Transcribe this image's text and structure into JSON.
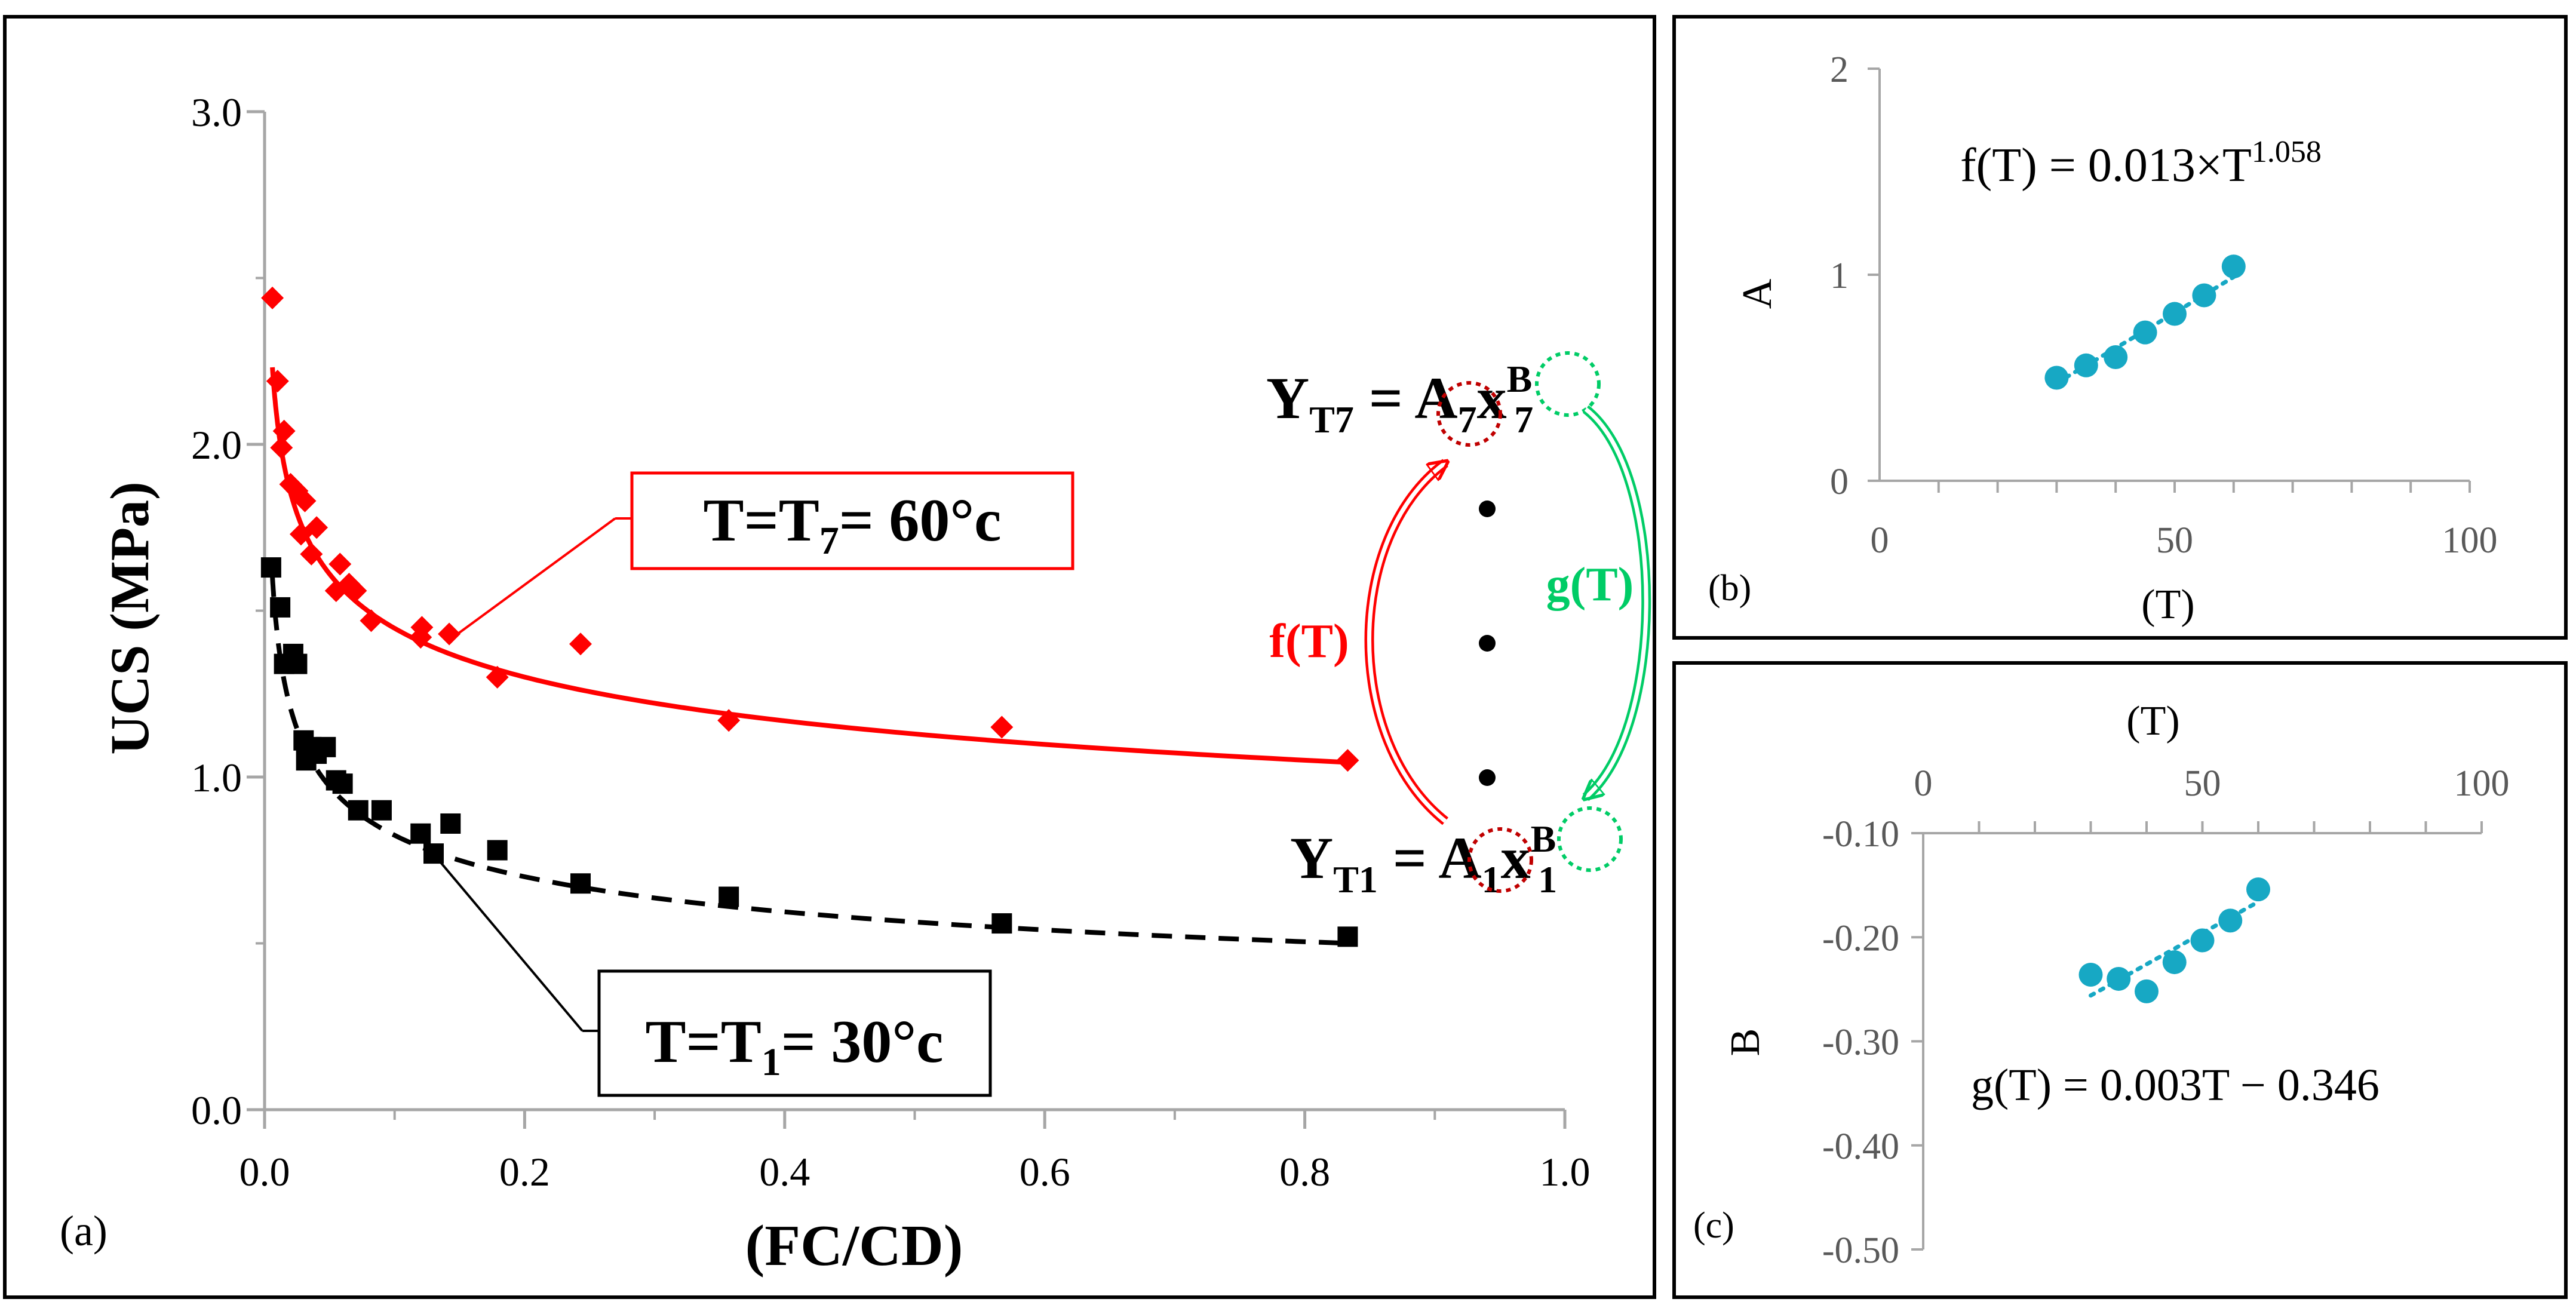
{
  "chart_data": [
    {
      "id": "a",
      "type": "scatter",
      "panel_label": "(a)",
      "xlabel": "(FC/CD)",
      "ylabel": "UCS (MPa)",
      "xlim": [
        0,
        1.0
      ],
      "ylim": [
        0,
        3.0
      ],
      "x_ticks": [
        "0.0",
        "0.2",
        "0.4",
        "0.6",
        "0.8",
        "1.0"
      ],
      "y_ticks": [
        "0.0",
        "1.0",
        "2.0",
        "3.0"
      ],
      "series": [
        {
          "name": "T=T7= 60°c",
          "color": "#ff0000",
          "marker": "diamond",
          "fit_line": "solid",
          "fit_A": 1.015,
          "fit_B": -0.154,
          "points": [
            [
              0.006,
              2.44
            ],
            [
              0.01,
              2.19
            ],
            [
              0.013,
              1.99
            ],
            [
              0.015,
              2.04
            ],
            [
              0.02,
              1.88
            ],
            [
              0.025,
              1.86
            ],
            [
              0.028,
              1.73
            ],
            [
              0.031,
              1.83
            ],
            [
              0.036,
              1.67
            ],
            [
              0.04,
              1.75
            ],
            [
              0.055,
              1.56
            ],
            [
              0.058,
              1.64
            ],
            [
              0.065,
              1.58
            ],
            [
              0.07,
              1.56
            ],
            [
              0.082,
              1.47
            ],
            [
              0.12,
              1.42
            ],
            [
              0.121,
              1.45
            ],
            [
              0.142,
              1.43
            ],
            [
              0.179,
              1.3
            ],
            [
              0.243,
              1.4
            ],
            [
              0.357,
              1.17
            ],
            [
              0.567,
              1.15
            ],
            [
              0.833,
              1.05
            ]
          ]
        },
        {
          "name": "T=T1= 30°c",
          "color": "#000000",
          "marker": "square",
          "fit_line": "dashed",
          "fit_A": 0.479,
          "fit_B": -0.236,
          "points": [
            [
              0.005,
              1.63
            ],
            [
              0.012,
              1.51
            ],
            [
              0.015,
              1.34
            ],
            [
              0.022,
              1.37
            ],
            [
              0.025,
              1.34
            ],
            [
              0.03,
              1.11
            ],
            [
              0.032,
              1.05
            ],
            [
              0.036,
              1.09
            ],
            [
              0.04,
              1.07
            ],
            [
              0.047,
              1.09
            ],
            [
              0.055,
              0.99
            ],
            [
              0.06,
              0.98
            ],
            [
              0.072,
              0.9
            ],
            [
              0.09,
              0.9
            ],
            [
              0.12,
              0.83
            ],
            [
              0.13,
              0.77
            ],
            [
              0.143,
              0.86
            ],
            [
              0.179,
              0.78
            ],
            [
              0.243,
              0.68
            ],
            [
              0.357,
              0.64
            ],
            [
              0.567,
              0.56
            ],
            [
              0.833,
              0.52
            ]
          ]
        }
      ],
      "annotations": {
        "label_60": {
          "prefix": "T=T",
          "sub": "7",
          "suffix": "= 60°c"
        },
        "label_30": {
          "prefix": "T=T",
          "sub": "1",
          "suffix": "= 30°c"
        },
        "eq_top": {
          "y": "Y",
          "ysub": "T7",
          "eq": " = ",
          "a": "A",
          "asub": "7",
          "x": "x",
          "bsup": "B",
          "bsub": "7"
        },
        "eq_bottom": {
          "y": "Y",
          "ysub": "T1",
          "eq": " = ",
          "a": "A",
          "asub": "1",
          "x": "x",
          "bsup": "B",
          "bsub": "1"
        },
        "f_label": "f(T)",
        "g_label": "g(T)"
      }
    },
    {
      "id": "b",
      "type": "scatter",
      "panel_label": "(b)",
      "xlabel": "(T)",
      "ylabel": "A",
      "xlim": [
        0,
        100
      ],
      "ylim": [
        0,
        2
      ],
      "x_ticks": [
        "0",
        "50",
        "100"
      ],
      "y_ticks": [
        "0",
        "1",
        "2"
      ],
      "color": "#17a8c4",
      "points": [
        [
          30,
          0.5
        ],
        [
          35,
          0.56
        ],
        [
          40,
          0.6
        ],
        [
          45,
          0.72
        ],
        [
          50,
          0.81
        ],
        [
          55,
          0.9
        ],
        [
          60,
          1.04
        ]
      ],
      "equation": {
        "base": "f(T) = 0.013×T",
        "exp": "1.058"
      }
    },
    {
      "id": "c",
      "type": "scatter",
      "panel_label": "(c)",
      "xlabel": "(T)",
      "ylabel": "B",
      "xlim": [
        0,
        100
      ],
      "ylim": [
        -0.5,
        -0.1
      ],
      "x_ticks": [
        "0",
        "50",
        "100"
      ],
      "y_ticks": [
        "-0.10",
        "-0.20",
        "-0.30",
        "-0.40",
        "-0.50"
      ],
      "color": "#17a8c4",
      "points": [
        [
          30,
          -0.236
        ],
        [
          35,
          -0.24
        ],
        [
          40,
          -0.252
        ],
        [
          45,
          -0.224
        ],
        [
          50,
          -0.203
        ],
        [
          55,
          -0.184
        ],
        [
          60,
          -0.154
        ]
      ],
      "equation": {
        "base": "g(T) = 0.003T − 0.346"
      }
    }
  ]
}
